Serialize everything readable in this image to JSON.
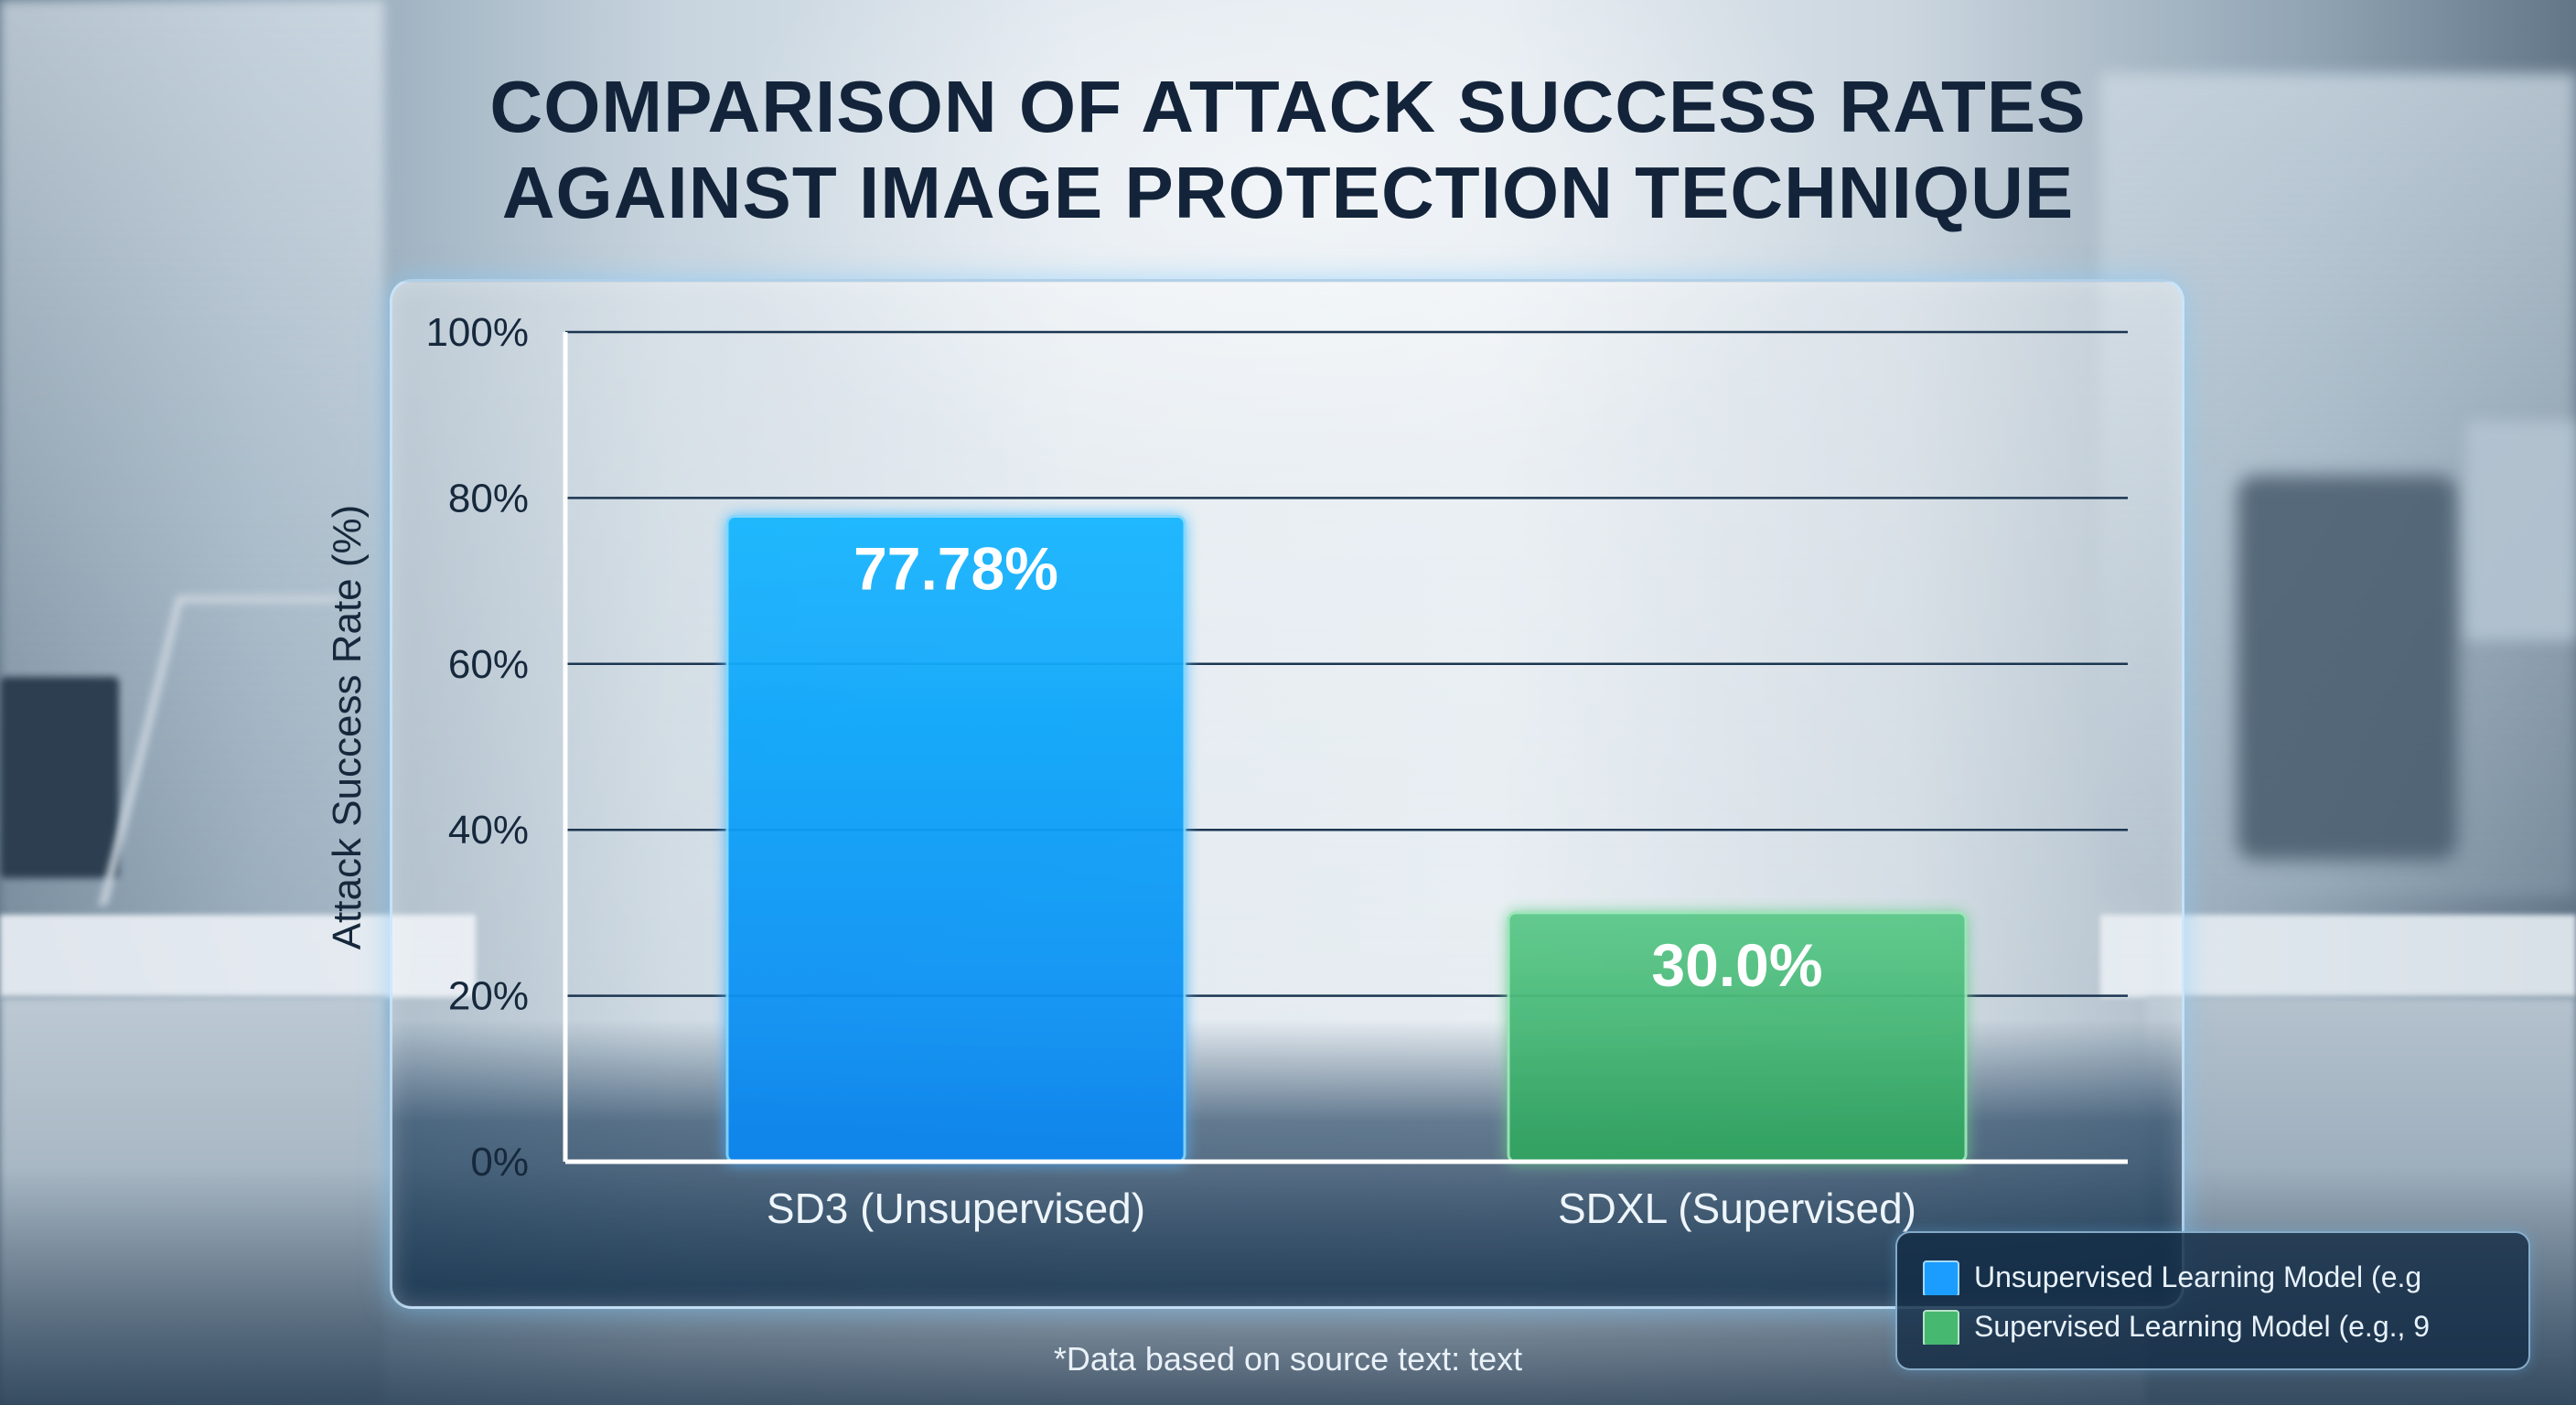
{
  "title_lines": [
    "COMPARISON OF ATTACK SUCCESS RATES",
    "AGAINST IMAGE PROTECTION TECHNIQUE"
  ],
  "footnote": "*Data based on source text: text",
  "colors": {
    "unsupervised": "#1a9dff",
    "supervised": "#46b870",
    "title": "#13243a",
    "gridline": "#1b3550"
  },
  "chart_data": {
    "type": "bar",
    "categories": [
      "SD3 (Unsupervised)",
      "SDXL (Supervised)"
    ],
    "values": [
      77.78,
      30.0
    ],
    "data_labels": [
      "77.78%",
      "30.0%"
    ],
    "ylabel": "Attack Success Rate (%)",
    "ylim": [
      0,
      100
    ],
    "yticks": [
      0,
      20,
      40,
      60,
      80,
      100
    ],
    "ytick_labels": [
      "0%",
      "20%",
      "40%",
      "60%",
      "80%",
      "100%"
    ],
    "grid": true,
    "legend": {
      "placement": "bottom-right",
      "entries": [
        {
          "label": "Unsupervised Learning Model (e.g",
          "color": "#1a9dff"
        },
        {
          "label": "Supervised Learning Model (e.g., 9",
          "color": "#46b870"
        }
      ]
    }
  }
}
